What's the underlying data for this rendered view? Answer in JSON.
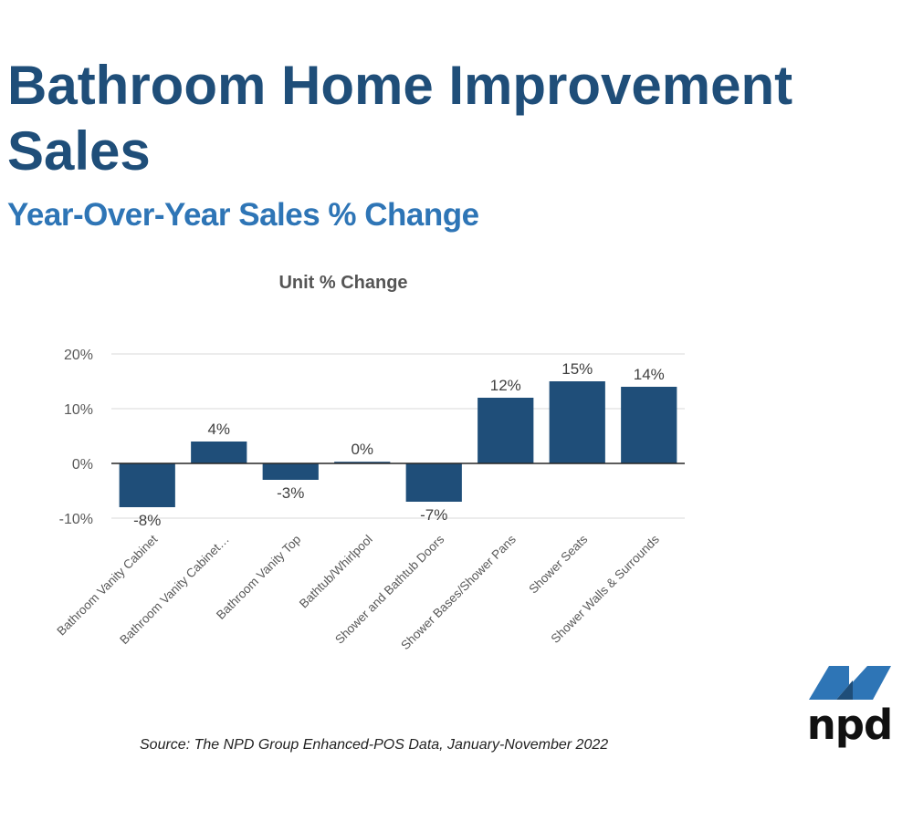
{
  "header": {
    "title": "Bathroom Home Improvement Sales",
    "subtitle": "Year-Over-Year Sales % Change"
  },
  "chart_data": {
    "type": "bar",
    "title": "Unit % Change",
    "categories": [
      "Bathroom Vanity Cabinet",
      "Bathroom Vanity Cabinet…",
      "Bathroom Vanity Top",
      "Bathtub/Whirlpool",
      "Shower and Bathtub Doors",
      "Shower Bases/Shower Pans",
      "Shower Seats",
      "Shower Walls & Surrounds"
    ],
    "values": [
      -8,
      4,
      -3,
      0.3,
      -7,
      12,
      15,
      14
    ],
    "data_labels": [
      "-8%",
      "4%",
      "-3%",
      "0%",
      "-7%",
      "12%",
      "15%",
      "14%"
    ],
    "y_ticks": [
      20,
      10,
      0,
      -10
    ],
    "y_tick_labels": [
      "20%",
      "10%",
      "0%",
      "-10%"
    ],
    "ylim": [
      -10,
      20
    ],
    "grid": true,
    "legend": "none",
    "bar_color": "#1f4e79",
    "xlabel": "",
    "ylabel": ""
  },
  "footer": {
    "source": "Source: The NPD Group Enhanced-POS Data, January-November 2022",
    "logo_text": "npd",
    "logo_color": "#2e75b6"
  }
}
